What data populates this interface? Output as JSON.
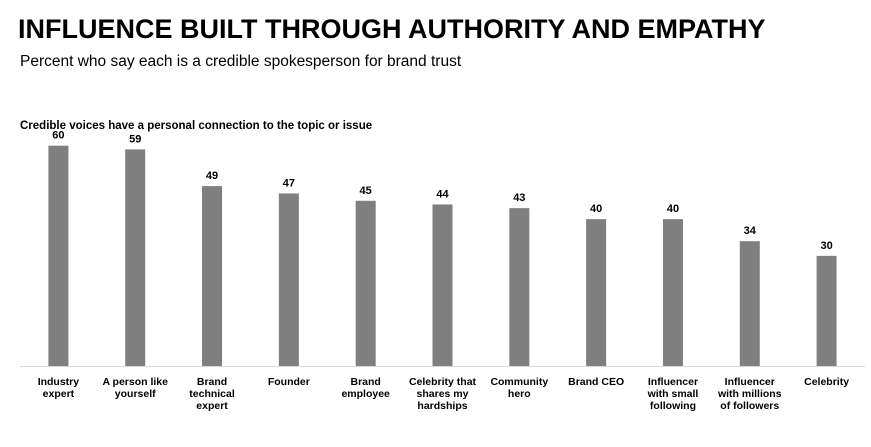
{
  "header": {
    "title": "INFLUENCE BUILT THROUGH AUTHORITY AND EMPATHY",
    "subtitle": "Percent who say each is a credible spokesperson for brand trust"
  },
  "chart_data": {
    "type": "bar",
    "title": "Credible voices have a personal connection to the topic or issue",
    "categories": [
      [
        "Industry",
        "expert"
      ],
      [
        "A person like",
        "yourself"
      ],
      [
        "Brand",
        "technical",
        "expert"
      ],
      [
        "Founder"
      ],
      [
        "Brand",
        "employee"
      ],
      [
        "Celebrity that",
        "shares my",
        "hardships"
      ],
      [
        "Community",
        "hero"
      ],
      [
        "Brand CEO"
      ],
      [
        "Influencer",
        "with small",
        "following"
      ],
      [
        "Influencer",
        "with millions",
        "of followers"
      ],
      [
        "Celebrity"
      ]
    ],
    "values": [
      60,
      59,
      49,
      47,
      45,
      44,
      43,
      40,
      40,
      34,
      30
    ],
    "ylim": [
      0,
      70
    ],
    "data_labels": true,
    "grid": false,
    "legend": "none",
    "bar_color": "#7f7f7f",
    "axis_color": "#d9d9d9"
  }
}
